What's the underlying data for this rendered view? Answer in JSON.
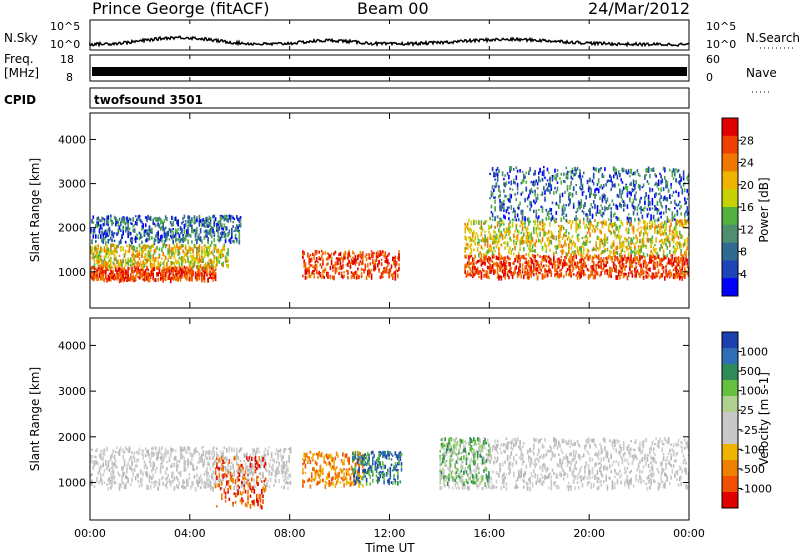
{
  "header": {
    "title": "Prince George (fitACF)",
    "beam": "Beam 00",
    "date": "24/Mar/2012"
  },
  "panels": {
    "nsky_label": "N.Sky",
    "nsky_top_tick": "10^5",
    "nsky_bottom_tick": "10^0",
    "nsearch_label": "N.Search",
    "nsearch_top_tick": "10^5",
    "nsearch_bottom_tick": "10^0",
    "freq_label": "Freq.",
    "freq_unit": "[MHz]",
    "freq_top_tick": "18",
    "freq_bottom_tick": "8",
    "nave_label": "Nave",
    "nave_top_tick": "60",
    "nave_bottom_tick": "0",
    "cpid_label": "CPID",
    "cpid_value": "twofsound 3501"
  },
  "chart_data": [
    {
      "type": "heatmap",
      "name": "Power",
      "ylabel": "Slant Range [km]",
      "yticks": [
        1000,
        2000,
        3000,
        4000
      ],
      "ylim": [
        180,
        4600
      ],
      "colorbar_label": "Power [dB]",
      "colorbar_ticks": [
        "28",
        "24",
        "20",
        "16",
        "12",
        "8",
        "4"
      ],
      "colorbar_colors": [
        "#e10000",
        "#f04000",
        "#f07800",
        "#f0b400",
        "#c8d200",
        "#50b040",
        "#4f8f6f",
        "#306a90",
        "#1d45b8",
        "#0000ff"
      ],
      "bands": [
        {
          "t0": 0.0,
          "t1": 5.0,
          "r0": 850,
          "r1": 1150,
          "level": "high"
        },
        {
          "t0": 0.0,
          "t1": 5.5,
          "r0": 1150,
          "r1": 1650,
          "level": "mid"
        },
        {
          "t0": 0.0,
          "t1": 6.0,
          "r0": 1700,
          "r1": 2300,
          "level": "low"
        },
        {
          "t0": 8.5,
          "t1": 12.4,
          "r0": 900,
          "r1": 1500,
          "level": "high"
        },
        {
          "t0": 15.0,
          "t1": 24.0,
          "r0": 900,
          "r1": 1400,
          "level": "high"
        },
        {
          "t0": 15.0,
          "t1": 24.0,
          "r0": 1400,
          "r1": 2200,
          "level": "mid"
        },
        {
          "t0": 16.0,
          "t1": 24.0,
          "r0": 2200,
          "r1": 3400,
          "level": "low"
        }
      ]
    },
    {
      "type": "heatmap",
      "name": "Velocity",
      "ylabel": "Slant Range [km]",
      "yticks": [
        1000,
        2000,
        3000,
        4000
      ],
      "ylim": [
        180,
        4600
      ],
      "colorbar_label": "Velocity [m s-1]",
      "colorbar_ticks": [
        "1000",
        "500",
        "100",
        "25",
        "-25",
        "-100",
        "-500",
        "-1000"
      ],
      "colorbar_colors": [
        "#1d3fb0",
        "#2f6db8",
        "#2e8b57",
        "#66c040",
        "#b0d090",
        "#c8c8c8",
        "#c8c8c8",
        "#f0b400",
        "#f08000",
        "#f05000",
        "#e00000"
      ],
      "bands": [
        {
          "t0": 0.0,
          "t1": 8.0,
          "r0": 900,
          "r1": 1800,
          "level": "grey"
        },
        {
          "t0": 5.0,
          "t1": 7.0,
          "r0": 500,
          "r1": 1600,
          "level": "red"
        },
        {
          "t0": 8.5,
          "t1": 11.0,
          "r0": 950,
          "r1": 1700,
          "level": "orange"
        },
        {
          "t0": 10.5,
          "t1": 12.5,
          "r0": 1000,
          "r1": 1700,
          "level": "greenblue"
        },
        {
          "t0": 14.0,
          "t1": 24.0,
          "r0": 900,
          "r1": 2000,
          "level": "grey"
        },
        {
          "t0": 14.0,
          "t1": 16.0,
          "r0": 1000,
          "r1": 2000,
          "level": "green"
        }
      ]
    }
  ],
  "xaxis": {
    "label": "Time UT",
    "ticks": [
      "00:00",
      "04:00",
      "08:00",
      "12:00",
      "16:00",
      "20:00",
      "00:00"
    ]
  }
}
